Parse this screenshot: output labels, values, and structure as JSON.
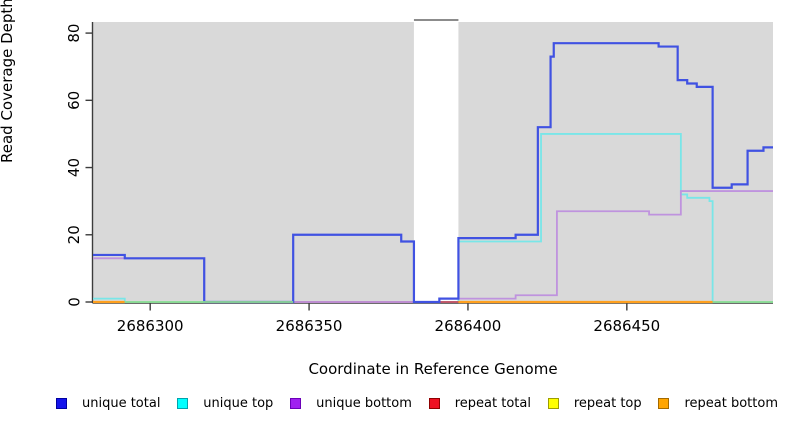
{
  "figure": {
    "title": "",
    "kind": "read coverage depth step plot"
  },
  "chart_data": {
    "type": "line",
    "step": true,
    "title": "",
    "xlabel": "Coordinate in Reference Genome",
    "ylabel": "Read Coverage Depth",
    "xlim": [
      2686282,
      2686496
    ],
    "ylim": [
      0,
      83.3
    ],
    "x_ticks": [
      2686300,
      2686350,
      2686400,
      2686450
    ],
    "y_ticks": [
      0,
      20,
      40,
      60,
      80
    ],
    "grid": false,
    "plot_bg": "#d9d9d9",
    "axis_color": "#3c3c3c",
    "tick_label_color": "#000000",
    "gap_region": {
      "x_start": 2686383,
      "x_end": 2686397,
      "fill": "#ffffff",
      "top_border": "#8c8c8c"
    },
    "series": [
      {
        "name": "unique top",
        "line_color": "#79e6e8",
        "width": 1.8,
        "segments": [
          [
            [
              2686282,
              1
            ],
            [
              2686292,
              0
            ],
            [
              2686397,
              18
            ],
            [
              2686423,
              50
            ],
            [
              2686467,
              32
            ],
            [
              2686469,
              31
            ],
            [
              2686476,
              30
            ],
            [
              2686477,
              0
            ],
            [
              2686496,
              0
            ]
          ]
        ]
      },
      {
        "name": "repeat total",
        "line_color": "#c9485b",
        "width": 1.8,
        "segments": [
          [
            [
              2686345,
              0
            ],
            [
              2686477,
              0
            ]
          ]
        ]
      },
      {
        "name": "repeat bottom",
        "line_color": "#ffa01e",
        "width": 2.2,
        "segments": [
          [
            [
              2686282,
              0
            ],
            [
              2686292,
              0
            ]
          ],
          [
            [
              2686397,
              0
            ],
            [
              2686477,
              0
            ]
          ]
        ]
      },
      {
        "name": "unique bottom",
        "line_color": "#bf93de",
        "width": 1.8,
        "segments": [
          [
            [
              2686282,
              13
            ],
            [
              2686317,
              0
            ],
            [
              2686391,
              1
            ],
            [
              2686415,
              2
            ],
            [
              2686428,
              27
            ],
            [
              2686457,
              26
            ],
            [
              2686467,
              33
            ],
            [
              2686496,
              33
            ]
          ]
        ]
      },
      {
        "name": "unique total",
        "line_color": "#4052e2",
        "width": 2.2,
        "segments": [
          [
            [
              2686282,
              14
            ],
            [
              2686292,
              13
            ],
            [
              2686317,
              0
            ],
            [
              2686345,
              20
            ],
            [
              2686379,
              18
            ],
            [
              2686383,
              0
            ],
            [
              2686391,
              1
            ],
            [
              2686397,
              19
            ],
            [
              2686415,
              20
            ],
            [
              2686422,
              52
            ],
            [
              2686426,
              73
            ],
            [
              2686427,
              77
            ],
            [
              2686460,
              76
            ],
            [
              2686466,
              66
            ],
            [
              2686469,
              65
            ],
            [
              2686472,
              64
            ],
            [
              2686477,
              34
            ],
            [
              2686483,
              35
            ],
            [
              2686488,
              45
            ],
            [
              2686493,
              46
            ],
            [
              2686496,
              46
            ]
          ]
        ]
      },
      {
        "name": "repeat top",
        "line_color": "#8fdc8f",
        "width": 1.8,
        "segments": [
          [
            [
              2686292,
              0
            ],
            [
              2686345,
              0
            ]
          ],
          [
            [
              2686477,
              0
            ],
            [
              2686496,
              0
            ]
          ]
        ]
      }
    ]
  },
  "legend": {
    "items": [
      {
        "label": "unique total",
        "fill": "#1414ec",
        "border": "#0000a0"
      },
      {
        "label": "unique top",
        "fill": "#00ffff",
        "border": "#00a3ad"
      },
      {
        "label": "unique bottom",
        "fill": "#a020f0",
        "border": "#6b00b8"
      },
      {
        "label": "repeat total",
        "fill": "#ee1122",
        "border": "#8e0000"
      },
      {
        "label": "repeat top",
        "fill": "#ffff00",
        "border": "#9d9d00"
      },
      {
        "label": "repeat bottom",
        "fill": "#ffa500",
        "border": "#a36a00"
      }
    ]
  }
}
